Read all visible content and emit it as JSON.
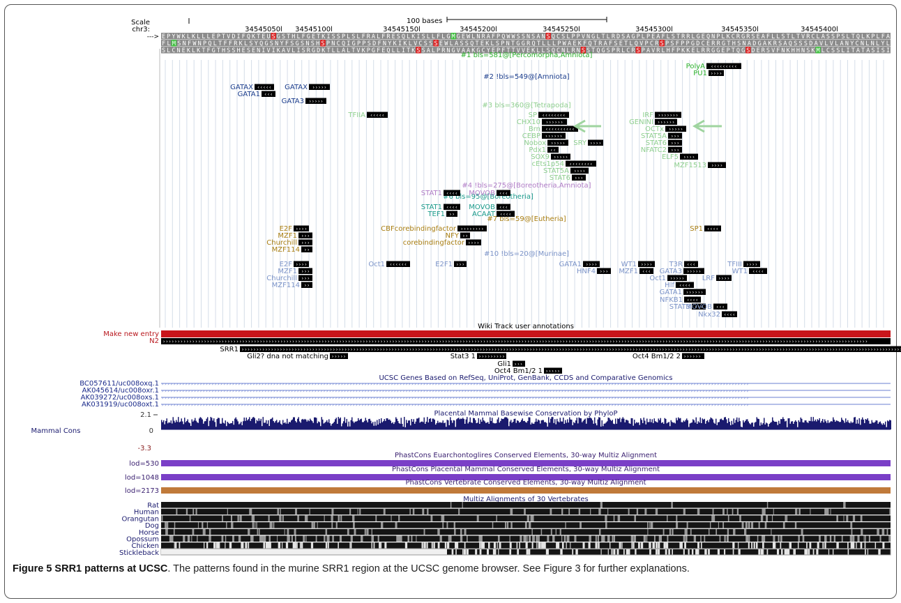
{
  "caption": {
    "title": "Figure 5 SRR1 patterns at UCSC",
    "text": ". The patterns found in the murine SRR1 region at the UCSC genome browser. See Figure 3 for further explanations."
  },
  "ruler": {
    "scale_label": "Scale",
    "chr_label": "chr3:",
    "arrow_label": "--->",
    "bar_label": "100 bases",
    "positions": [
      "34545050",
      "34545100",
      "34545150",
      "34545200",
      "34545250",
      "34545300",
      "34545350",
      "34545400"
    ]
  },
  "aa_rows": [
    "EPYWKLKLLLEPTVDIFQKTEUSGSTHLFGETKISSPLSLFRALFRESQLKISLLFLGMGEWLNRAFPQWWSSNSANSQCSLPPVNGLTLRDSAGPLPEAFLSTRRLGEQNPLKCRGRSEAFLLSTLTVRCLASSPSLTQLKPLFA",
    "FLMSNFWNPQLTFFRKLSYQGSNYFSGSNSHSPNCQIGPPSDFNYKIKLVCSSSEWLASSQTEKLSPNTGGRQTLLLPWAEKFQTRAFSETLQVPCRSPSFPPGDCERRGTHSNADGAKRSAQSSSDAVLVLANYCNLNLYL",
    "SLCNEKLKTFGTHSSHESENIVIKAVLISRGDKTLLALTVKPGFEQLLITKSSALPRNGVAAKGCYEPFTTVVEKLLSQCNLRNSSTQGSPRLCRSPAVRLHFPKKELRRGGEPTQGSDERSVFNKHHNSKMLCSSLITATASISI"
  ],
  "tfbs_labels": [
    {
      "t": "#1 bls=581@[Percomorpha,Amniota]",
      "c": "#2bb02b"
    },
    {
      "t": "#2 !bls=549@[Amniota]",
      "c": "#1a3c8c"
    },
    {
      "t": "#3 bls=360@[Tetrapoda]",
      "c": "#8fcf8f"
    },
    {
      "t": "#4 !bls=275@[Boreotheria,Amniota]",
      "c": "#b07cc6"
    },
    {
      "t": "#6 bls=95@[Boreotheria]",
      "c": "#1a9a8a"
    },
    {
      "t": "#7 bls=59@[Eutheria]",
      "c": "#a87d10"
    },
    {
      "t": "#10 !bls=20@[Murinae]",
      "c": "#7b93c8"
    }
  ],
  "tfbs_hits": [
    {
      "n": "PolyA",
      "c": "#2bb02b",
      "d": "<"
    },
    {
      "n": "PU1",
      "c": "#2bb02b",
      "d": ">"
    },
    {
      "n": "GATAX",
      "c": "#1a3c8c",
      "d": "<"
    },
    {
      "n": "GATAX",
      "c": "#1a3c8c",
      "d": ">"
    },
    {
      "n": "GATA1",
      "c": "#1a3c8c",
      "d": "<"
    },
    {
      "n": "GATA3",
      "c": "#1a3c8c",
      "d": ">"
    },
    {
      "n": "TFIIA",
      "c": "#8fcf8f",
      "d": "<"
    },
    {
      "n": "SP",
      "c": "#8fcf8f",
      "d": "<"
    },
    {
      "n": "CHX10",
      "c": "#8fcf8f",
      "d": ">"
    },
    {
      "n": "Brn",
      "c": "#8fcf8f",
      "d": "<"
    },
    {
      "n": "CEBP",
      "c": "#8fcf8f",
      "d": ">"
    },
    {
      "n": "Nobox",
      "c": "#8fcf8f",
      "d": ">"
    },
    {
      "n": "SRY",
      "c": "#8fcf8f",
      "d": ">"
    },
    {
      "n": "Pdx1",
      "c": "#8fcf8f",
      "d": "<"
    },
    {
      "n": "SOX9",
      "c": "#8fcf8f",
      "d": ">"
    },
    {
      "n": "cEts1p54",
      "c": "#8fcf8f",
      "d": "<"
    },
    {
      "n": "STAT5A",
      "c": "#8fcf8f",
      "d": ">"
    },
    {
      "n": "STAT6",
      "c": "#8fcf8f",
      "d": ">"
    },
    {
      "n": "IRF",
      "c": "#8fcf8f",
      "d": ">"
    },
    {
      "n": "GENINI",
      "c": "#8fcf8f",
      "d": ">"
    },
    {
      "n": "OCTx",
      "c": "#8fcf8f",
      "d": ">"
    },
    {
      "n": "STAT5A",
      "c": "#8fcf8f",
      "d": ">"
    },
    {
      "n": "STAT6",
      "c": "#8fcf8f",
      "d": ">"
    },
    {
      "n": "NFATC2",
      "c": "#8fcf8f",
      "d": ">"
    },
    {
      "n": "ELF5",
      "c": "#8fcf8f",
      "d": ">"
    },
    {
      "n": "MZF1513",
      "c": "#8fcf8f",
      "d": ">"
    },
    {
      "n": "STAT1",
      "c": "#b07cc6",
      "d": "<"
    },
    {
      "n": "MOVOB",
      "c": "#b07cc6",
      "d": "<"
    },
    {
      "n": "STAT1",
      "c": "#1a9a8a",
      "d": "<"
    },
    {
      "n": "MOVOB",
      "c": "#1a9a8a",
      "d": "<"
    },
    {
      "n": "TEF1",
      "c": "#1a9a8a",
      "d": ">"
    },
    {
      "n": "ACAAT",
      "c": "#1a9a8a",
      "d": "<"
    },
    {
      "n": "CBFcorebindingfactor",
      "c": "#a87d10",
      "d": ">"
    },
    {
      "n": "NFY",
      "c": "#a87d10",
      "d": ">"
    },
    {
      "n": "corebindingfactor",
      "c": "#a87d10",
      "d": ">"
    },
    {
      "n": "E2F",
      "c": "#a87d10",
      "d": ">"
    },
    {
      "n": "MZF1",
      "c": "#a87d10",
      "d": ">"
    },
    {
      "n": "Churchill",
      "c": "#a87d10",
      "d": ">"
    },
    {
      "n": "MZF114",
      "c": "#a87d10",
      "d": ">"
    },
    {
      "n": "SP1",
      "c": "#a87d10",
      "d": "<"
    },
    {
      "n": "E2F",
      "c": "#7b93c8",
      "d": ">"
    },
    {
      "n": "MZF1",
      "c": "#7b93c8",
      "d": ">"
    },
    {
      "n": "Churchill",
      "c": "#7b93c8",
      "d": ">"
    },
    {
      "n": "MZF114",
      "c": "#7b93c8",
      "d": ">"
    },
    {
      "n": "Oct1",
      "c": "#7b93c8",
      "d": "<"
    },
    {
      "n": "E2F1",
      "c": "#7b93c8",
      "d": ">"
    },
    {
      "n": "GATA1",
      "c": "#7b93c8",
      "d": ">"
    },
    {
      "n": "HNF4",
      "c": "#7b93c8",
      "d": ">"
    },
    {
      "n": "WT1",
      "c": "#7b93c8",
      "d": ">"
    },
    {
      "n": "MZF1",
      "c": "#7b93c8",
      "d": "<"
    },
    {
      "n": "T3R",
      "c": "#7b93c8",
      "d": "<"
    },
    {
      "n": "GATA3",
      "c": "#7b93c8",
      "d": ">"
    },
    {
      "n": "Oct1",
      "c": "#7b93c8",
      "d": ">"
    },
    {
      "n": "Hlf",
      "c": "#7b93c8",
      "d": "<"
    },
    {
      "n": "GATA1",
      "c": "#7b93c8",
      "d": ">"
    },
    {
      "n": "NFKB1",
      "c": "#7b93c8",
      "d": "<"
    },
    {
      "n": "STAT3",
      "c": "#7b93c8",
      "d": "<"
    },
    {
      "n": "MOVOB",
      "c": "#7b93c8",
      "d": "<"
    },
    {
      "n": "Nkx32",
      "c": "#7b93c8",
      "d": "<"
    },
    {
      "n": "LRF",
      "c": "#7b93c8",
      "d": ">"
    },
    {
      "n": "TFIII",
      "c": "#7b93c8",
      "d": ">"
    },
    {
      "n": "WT1",
      "c": "#7b93c8",
      "d": "<"
    }
  ],
  "wiki": {
    "title": "Wiki Track user annotations",
    "make_new": "Make new entry",
    "n2": "N2",
    "features": [
      {
        "n": "SRR1",
        "d": ">"
      },
      {
        "n": "Gli2? dna not matching",
        "d": ">"
      },
      {
        "n": "Stat3 1",
        "d": ">"
      },
      {
        "n": "Oct4 Bm1/2 2",
        "d": ">"
      },
      {
        "n": "Gli1",
        "d": ">"
      },
      {
        "n": "Oct4 Bm1/2 1",
        "d": ">"
      }
    ]
  },
  "genes": {
    "title": "UCSC Genes Based on RefSeq, UniProt, GenBank, CCDS and Comparative Genomics",
    "items": [
      "BC057611/uc008oxq.1",
      "AK045614/uc008oxr.1",
      "AK039272/uc008oxs.1",
      "AK031919/uc008oxt.1"
    ]
  },
  "cons": {
    "title": "Placental Mammal Basewise Conservation by PhyloP",
    "label": "Mammal Cons",
    "ymax": "2.1",
    "yzero": "0",
    "ymin": "-3.3"
  },
  "phastcons": [
    {
      "lod": "lod=530",
      "title": "PhastCons Euarchontoglires Conserved Elements, 30-way Multiz Alignment",
      "color": "#7a3fc7"
    },
    {
      "lod": "lod=1048",
      "title": "PhastCons Placental Mammal Conserved Elements, 30-way Multiz Alignment",
      "color": "#7a3fc7"
    },
    {
      "lod": "lod=2173",
      "title": "PhastCons Vertebrate Conserved Elements, 30-way Multiz Alignment",
      "color": "#c07a3a"
    }
  ],
  "multiz": {
    "title": "Multiz Alignments of 30 Vertebrates",
    "species": [
      "Rat",
      "Human",
      "Orangutan",
      "Dog",
      "Horse",
      "Opossum",
      "Chicken",
      "Stickleback"
    ]
  }
}
